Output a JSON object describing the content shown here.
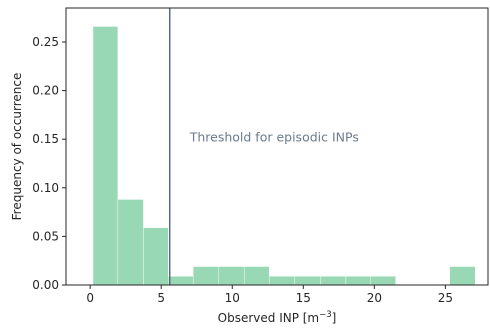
{
  "chart_data": {
    "type": "bar",
    "xlabel": "Observed INP [m",
    "xlabel_sup": "−3",
    "xlabel_suffix": "]",
    "ylabel": "Frequency of occurrence",
    "xlim": [
      -1.7,
      28.0
    ],
    "ylim": [
      0,
      0.285
    ],
    "x_ticks": [
      0,
      5,
      10,
      15,
      20,
      25
    ],
    "x_tick_labels": [
      "0",
      "5",
      "10",
      "15",
      "20",
      "25"
    ],
    "y_ticks": [
      0.0,
      0.05,
      0.1,
      0.15,
      0.2,
      0.25
    ],
    "y_tick_labels": [
      "0.00",
      "0.05",
      "0.10",
      "0.15",
      "0.20",
      "0.25"
    ],
    "bins": [
      {
        "x0": 0.2,
        "x1": 1.95,
        "value": 0.266
      },
      {
        "x0": 1.95,
        "x1": 3.75,
        "value": 0.088
      },
      {
        "x0": 3.75,
        "x1": 5.5,
        "value": 0.059
      },
      {
        "x0": 5.5,
        "x1": 7.25,
        "value": 0.009
      },
      {
        "x0": 7.25,
        "x1": 9.05,
        "value": 0.019
      },
      {
        "x0": 9.05,
        "x1": 10.85,
        "value": 0.019
      },
      {
        "x0": 10.85,
        "x1": 12.6,
        "value": 0.019
      },
      {
        "x0": 12.6,
        "x1": 14.4,
        "value": 0.009
      },
      {
        "x0": 14.4,
        "x1": 16.2,
        "value": 0.009
      },
      {
        "x0": 16.2,
        "x1": 18.0,
        "value": 0.009
      },
      {
        "x0": 18.0,
        "x1": 19.75,
        "value": 0.009
      },
      {
        "x0": 19.75,
        "x1": 21.5,
        "value": 0.009
      },
      {
        "x0": 25.3,
        "x1": 27.1,
        "value": 0.019
      }
    ],
    "threshold": {
      "x": 5.6,
      "label": "Threshold for episodic INPs"
    },
    "grid": false,
    "colors": {
      "bar": "#99d8b5",
      "threshold": "#5a6b7d",
      "annotation": "#6b7b8c"
    }
  }
}
